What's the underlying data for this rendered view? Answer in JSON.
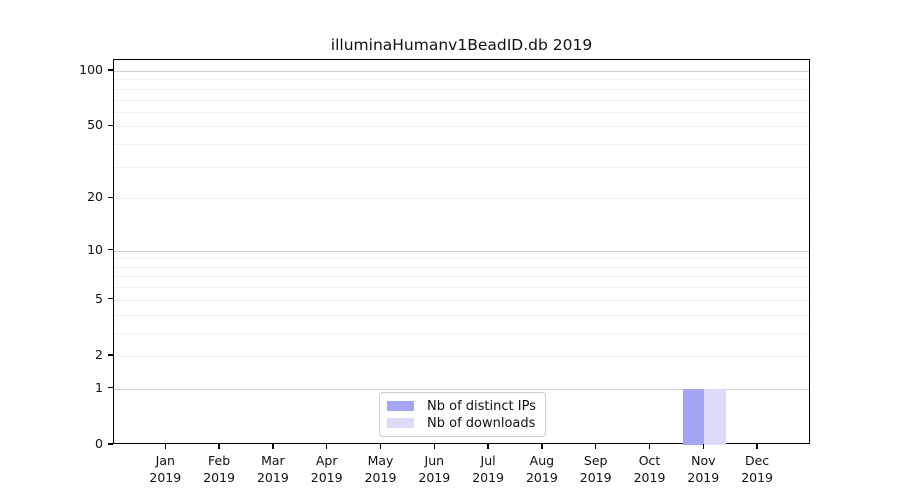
{
  "chart_data": {
    "type": "bar",
    "title": "illuminaHumanv1BeadID.db 2019",
    "categories": [
      "Jan",
      "Feb",
      "Mar",
      "Apr",
      "May",
      "Jun",
      "Jul",
      "Aug",
      "Sep",
      "Oct",
      "Nov",
      "Dec"
    ],
    "xtick_year": "2019",
    "series": [
      {
        "name": "Nb of distinct IPs",
        "color": "#a5a5f6",
        "values": [
          0,
          0,
          0,
          0,
          0,
          0,
          0,
          0,
          0,
          0,
          1,
          0
        ]
      },
      {
        "name": "Nb of downloads",
        "color": "#dcdcfa",
        "values": [
          0,
          0,
          0,
          0,
          0,
          0,
          0,
          0,
          0,
          0,
          1,
          0
        ]
      }
    ],
    "yscale": "log1p",
    "yticks": [
      0,
      1,
      2,
      5,
      10,
      20,
      50,
      100
    ],
    "ylim": [
      0,
      115
    ],
    "grid": {
      "major": [
        1,
        10,
        100
      ],
      "minor": [
        2,
        3,
        4,
        5,
        6,
        7,
        8,
        9,
        20,
        30,
        40,
        50,
        60,
        70,
        80,
        90
      ]
    },
    "legend_position": "bottom-center",
    "colors": {
      "axis": "#000000",
      "major_grid": "#d0d0d0",
      "minor_grid": "#f0f0f0",
      "background": "#ffffff"
    }
  }
}
